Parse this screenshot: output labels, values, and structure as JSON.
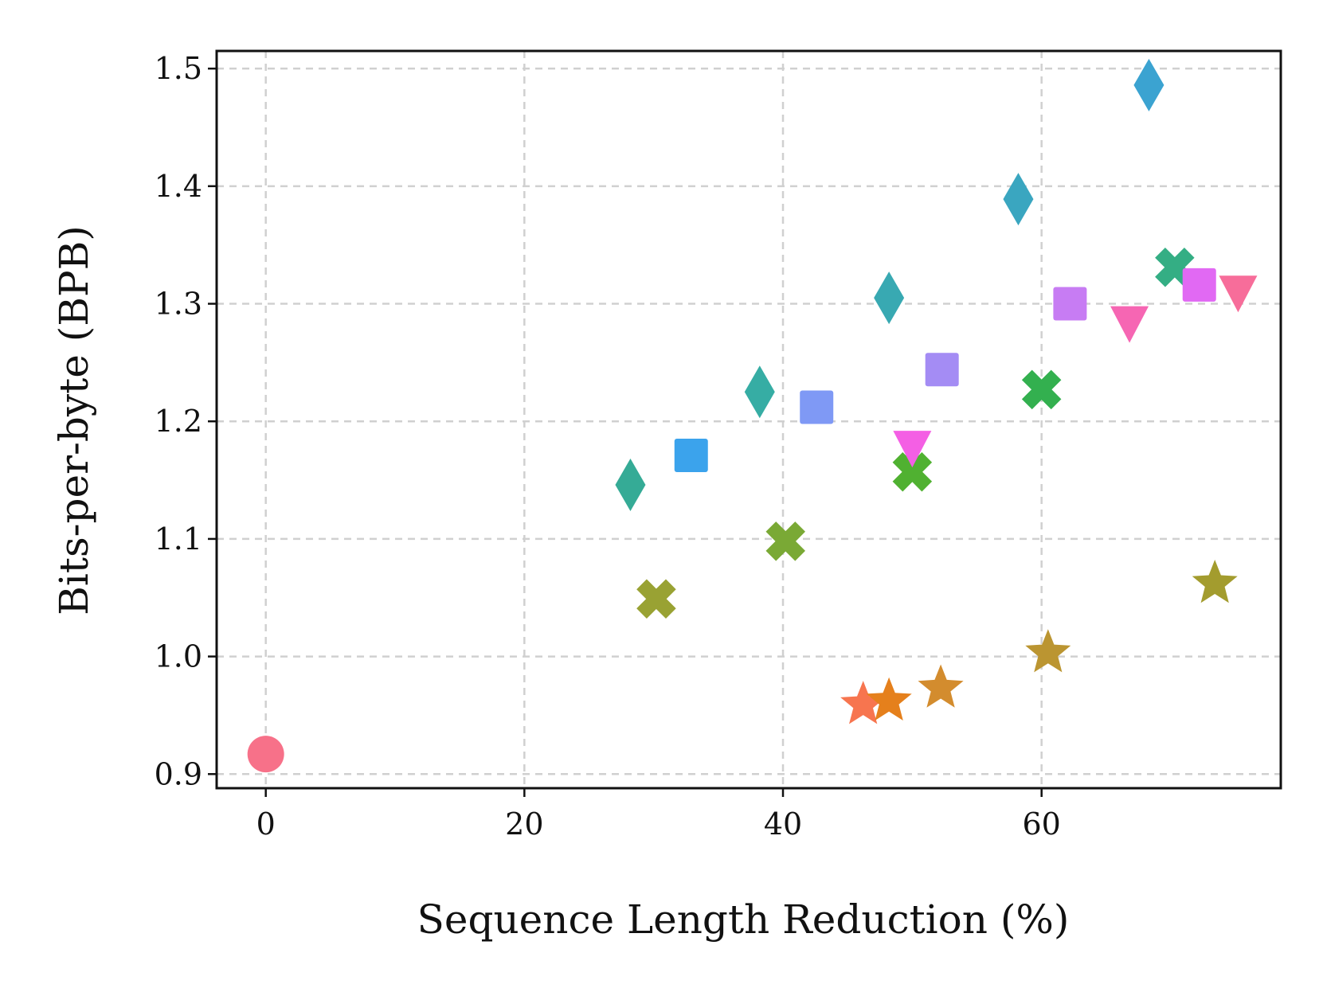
{
  "chart_data": {
    "type": "scatter",
    "title": "",
    "xlabel": "Sequence Length Reduction (%)",
    "ylabel": "Bits-per-byte (BPB)",
    "xlim": [
      -3.8,
      78.5
    ],
    "ylim": [
      0.888,
      1.515
    ],
    "xticks": [
      0,
      20,
      40,
      60
    ],
    "yticks": [
      0.9,
      1.0,
      1.1,
      1.2,
      1.3,
      1.4,
      1.5
    ],
    "grid": true,
    "legend": "none",
    "points": [
      {
        "x": 0,
        "y": 0.917,
        "marker": "circle",
        "color": "#f77189"
      },
      {
        "x": 46.2,
        "y": 0.959,
        "marker": "star",
        "color": "#f7754f"
      },
      {
        "x": 48.2,
        "y": 0.962,
        "marker": "star",
        "color": "#e5801c"
      },
      {
        "x": 52.2,
        "y": 0.973,
        "marker": "star",
        "color": "#d38c2e"
      },
      {
        "x": 60.5,
        "y": 1.003,
        "marker": "star",
        "color": "#bb9531"
      },
      {
        "x": 73.4,
        "y": 1.062,
        "marker": "star",
        "color": "#a39c2e"
      },
      {
        "x": 30.2,
        "y": 1.049,
        "marker": "x-filled",
        "color": "#99a233"
      },
      {
        "x": 40.2,
        "y": 1.098,
        "marker": "x-filled",
        "color": "#7aa935"
      },
      {
        "x": 50.0,
        "y": 1.157,
        "marker": "x-filled",
        "color": "#50b131"
      },
      {
        "x": 60.0,
        "y": 1.227,
        "marker": "x-filled",
        "color": "#33b04f"
      },
      {
        "x": 70.3,
        "y": 1.331,
        "marker": "x-filled",
        "color": "#34ae84"
      },
      {
        "x": 28.2,
        "y": 1.146,
        "marker": "diamond",
        "color": "#35ab96"
      },
      {
        "x": 38.2,
        "y": 1.225,
        "marker": "diamond",
        "color": "#36ada4"
      },
      {
        "x": 48.2,
        "y": 1.305,
        "marker": "diamond",
        "color": "#38a9b2"
      },
      {
        "x": 58.2,
        "y": 1.389,
        "marker": "diamond",
        "color": "#3aa6c0"
      },
      {
        "x": 68.3,
        "y": 1.486,
        "marker": "diamond",
        "color": "#3ba3d1"
      },
      {
        "x": 32.9,
        "y": 1.171,
        "marker": "square",
        "color": "#3ba3ec"
      },
      {
        "x": 42.6,
        "y": 1.212,
        "marker": "square",
        "color": "#7f99f5"
      },
      {
        "x": 52.3,
        "y": 1.244,
        "marker": "square",
        "color": "#a48cf4"
      },
      {
        "x": 62.2,
        "y": 1.3,
        "marker": "square",
        "color": "#c77cf3"
      },
      {
        "x": 72.2,
        "y": 1.316,
        "marker": "square",
        "color": "#e169f3"
      },
      {
        "x": 50.0,
        "y": 1.177,
        "marker": "triangle-down",
        "color": "#f45fe4"
      },
      {
        "x": 66.8,
        "y": 1.283,
        "marker": "triangle-down",
        "color": "#f666b3"
      },
      {
        "x": 75.2,
        "y": 1.309,
        "marker": "triangle-down",
        "color": "#f76d9a"
      }
    ]
  }
}
